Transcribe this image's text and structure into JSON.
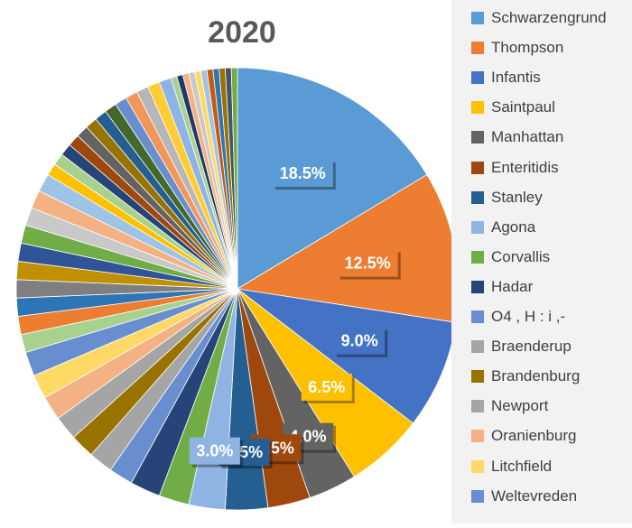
{
  "chart_data": {
    "type": "pie",
    "title": "2020",
    "legend_position": "right",
    "slices": [
      {
        "label": "Schwarzengrund",
        "value": 18.5,
        "color": "#5b9bd5",
        "data_label": "18.5%"
      },
      {
        "label": "Thompson",
        "value": 12.5,
        "color": "#ed7d31",
        "data_label": "12.5%"
      },
      {
        "label": "Infantis",
        "value": 9.0,
        "color": "#4472c4",
        "data_label": "9.0%"
      },
      {
        "label": "Saintpaul",
        "value": 6.5,
        "color": "#ffc000",
        "data_label": "6.5%"
      },
      {
        "label": "Manhattan",
        "value": 4.0,
        "color": "#636363",
        "data_label": "4.0%"
      },
      {
        "label": "Enteritidis",
        "value": 3.5,
        "color": "#9e480e",
        "data_label": "3.5%"
      },
      {
        "label": "Stanley",
        "value": 3.5,
        "color": "#255e91",
        "data_label": "3.5%"
      },
      {
        "label": "Agona",
        "value": 3.0,
        "color": "#8fb4e3",
        "data_label": "3.0%"
      },
      {
        "label": "Corvallis",
        "value": 2.5,
        "color": "#70ad47",
        "data_label": ""
      },
      {
        "label": "Hadar",
        "value": 2.5,
        "color": "#264478",
        "data_label": ""
      },
      {
        "label": "O4 , H : i ,-",
        "value": 2.0,
        "color": "#698ed0",
        "data_label": ""
      },
      {
        "label": "Braenderup",
        "value": 2.0,
        "color": "#a5a5a5",
        "data_label": ""
      },
      {
        "label": "Brandenburg",
        "value": 2.0,
        "color": "#997300",
        "data_label": ""
      },
      {
        "label": "Newport",
        "value": 2.0,
        "color": "#a5a5a5",
        "data_label": ""
      },
      {
        "label": "Oranienburg",
        "value": 2.0,
        "color": "#f4b183",
        "data_label": ""
      },
      {
        "label": "Litchfield",
        "value": 2.0,
        "color": "#ffd966",
        "data_label": ""
      },
      {
        "label": "Weltevreden",
        "value": 2.0,
        "color": "#698ed0",
        "data_label": ""
      },
      {
        "value": 1.5,
        "color": "#a9d18e"
      },
      {
        "value": 1.5,
        "color": "#ed7d31"
      },
      {
        "value": 1.5,
        "color": "#2e75b6"
      },
      {
        "value": 1.5,
        "color": "#7f7f7f"
      },
      {
        "value": 1.5,
        "color": "#c09000"
      },
      {
        "value": 1.5,
        "color": "#2f5597"
      },
      {
        "value": 1.5,
        "color": "#70ad47"
      },
      {
        "value": 1.5,
        "color": "#c9c9c9"
      },
      {
        "value": 1.5,
        "color": "#f4b183"
      },
      {
        "value": 1.5,
        "color": "#9dc3e6"
      },
      {
        "value": 1.0,
        "color": "#ffc000"
      },
      {
        "value": 1.0,
        "color": "#a9d18e"
      },
      {
        "value": 1.0,
        "color": "#264478"
      },
      {
        "value": 1.0,
        "color": "#9e480e"
      },
      {
        "value": 1.0,
        "color": "#636363"
      },
      {
        "value": 1.0,
        "color": "#997300"
      },
      {
        "value": 1.0,
        "color": "#255e91"
      },
      {
        "value": 1.0,
        "color": "#43682b"
      },
      {
        "value": 1.0,
        "color": "#698ed0"
      },
      {
        "value": 1.0,
        "color": "#f1975a"
      },
      {
        "value": 1.0,
        "color": "#b7b7b7"
      },
      {
        "value": 1.0,
        "color": "#ffcd33"
      },
      {
        "value": 1.0,
        "color": "#8fb4e3"
      },
      {
        "value": 0.5,
        "color": "#a9d18e"
      },
      {
        "value": 0.5,
        "color": "#203864"
      },
      {
        "value": 0.5,
        "color": "#f4b183"
      },
      {
        "value": 0.5,
        "color": "#c9c9c9"
      },
      {
        "value": 0.5,
        "color": "#ffd966"
      },
      {
        "value": 0.5,
        "color": "#9dc3e6"
      },
      {
        "value": 0.5,
        "color": "#c55a11"
      },
      {
        "value": 0.5,
        "color": "#2e75b6"
      },
      {
        "value": 0.5,
        "color": "#997300"
      },
      {
        "value": 0.5,
        "color": "#44546a"
      },
      {
        "value": 0.5,
        "color": "#70ad47"
      }
    ]
  }
}
